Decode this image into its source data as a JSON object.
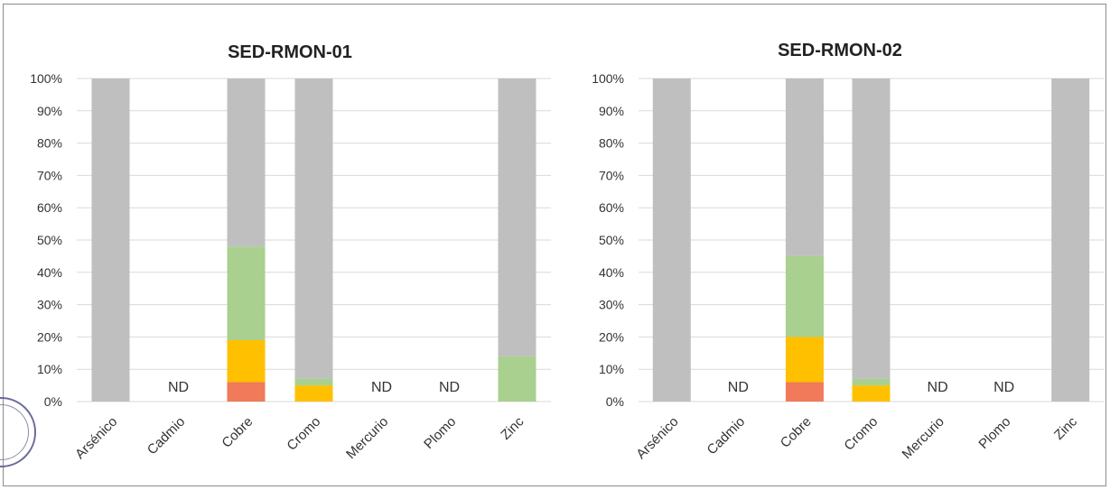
{
  "colors": {
    "gray": "#bfbfbf",
    "green": "#a9d08e",
    "yellow": "#ffc000",
    "red": "#f07a5a",
    "grid": "#d9d9d9",
    "frame": "#8c8c8c"
  },
  "y_ticks": [
    "0%",
    "10%",
    "20%",
    "30%",
    "40%",
    "50%",
    "60%",
    "70%",
    "80%",
    "90%",
    "100%"
  ],
  "nd_label": "ND",
  "chart_data": [
    {
      "type": "bar",
      "stacked": true,
      "title": "SED-RMON-01",
      "categories": [
        "Arsénico",
        "Cadmio",
        "Cobre",
        "Cromo",
        "Mercurio",
        "Plomo",
        "Zinc"
      ],
      "ylim": [
        0,
        100
      ],
      "grid": true,
      "segments_order_bottom_to_top": [
        "red",
        "yellow",
        "green",
        "gray"
      ],
      "stacks": [
        {
          "red": 0,
          "yellow": 0,
          "green": 0,
          "gray": 100
        },
        null,
        {
          "red": 6,
          "yellow": 13,
          "green": 29,
          "gray": 52
        },
        {
          "red": 0,
          "yellow": 5,
          "green": 2,
          "gray": 93
        },
        null,
        null,
        {
          "red": 0,
          "yellow": 0,
          "green": 14,
          "gray": 86
        }
      ]
    },
    {
      "type": "bar",
      "stacked": true,
      "title": "SED-RMON-02",
      "categories": [
        "Arsénico",
        "Cadmio",
        "Cobre",
        "Cromo",
        "Mercurio",
        "Plomo",
        "Zinc"
      ],
      "ylim": [
        0,
        100
      ],
      "grid": true,
      "segments_order_bottom_to_top": [
        "red",
        "yellow",
        "green",
        "gray"
      ],
      "stacks": [
        {
          "red": 0,
          "yellow": 0,
          "green": 0,
          "gray": 100
        },
        null,
        {
          "red": 6,
          "yellow": 14,
          "green": 25,
          "gray": 55
        },
        {
          "red": 0,
          "yellow": 5,
          "green": 2,
          "gray": 93
        },
        null,
        null,
        {
          "red": 0,
          "yellow": 0,
          "green": 0,
          "gray": 100
        }
      ]
    }
  ]
}
